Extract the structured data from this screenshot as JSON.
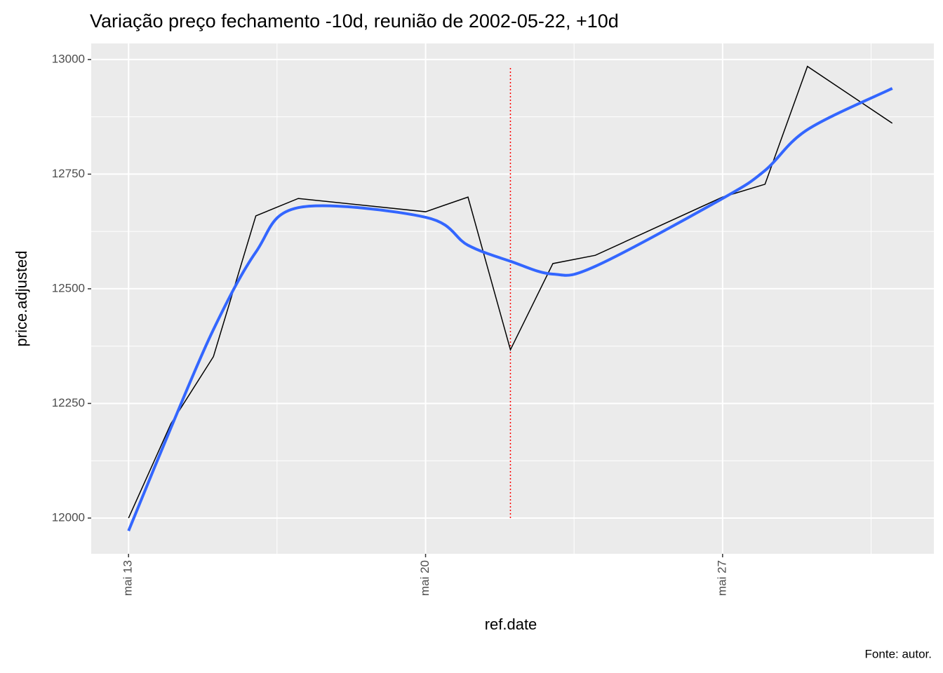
{
  "chart_data": {
    "type": "line",
    "title": "Variação preço fechamento -10d, reunião de 2002-05-22, +10d",
    "x_label": "ref.date",
    "y_label": "price.adjusted",
    "caption": "Fonte: autor.",
    "x": [
      13,
      14,
      15,
      16,
      17,
      20,
      21,
      22,
      23,
      24,
      27,
      28,
      29,
      31
    ],
    "series": [
      {
        "name": "price",
        "color": "#000000",
        "values": [
          12000,
          12206,
          12352,
          12659,
          12697,
          12668,
          12700,
          12367,
          12555,
          12573,
          12700,
          12728,
          12985,
          12861
        ]
      },
      {
        "name": "smooth",
        "color": "#3366ff",
        "smooth": true,
        "values": [
          11972,
          12197,
          12411,
          12580,
          12677,
          12656,
          12595,
          12560,
          12532,
          12549,
          12697,
          12758,
          12847,
          12937
        ]
      }
    ],
    "vline": {
      "x": 22,
      "ymin": 12000,
      "ymax": 12985,
      "color": "#ff0000"
    },
    "xlim": [
      12.12,
      31.98
    ],
    "xticks": [
      {
        "value": 13,
        "label": "mai 13"
      },
      {
        "value": 20,
        "label": "mai 20"
      },
      {
        "value": 27,
        "label": "mai 27"
      }
    ],
    "ylim": [
      11922,
      13035
    ],
    "yticks": [
      12000,
      12250,
      12500,
      12750,
      13000
    ],
    "grid": true
  }
}
